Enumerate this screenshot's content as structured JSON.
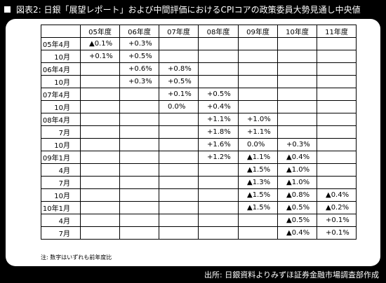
{
  "title": "図表2: 日銀「展望レポート」および中間評価におけるCPIコアの政策委員大勢見通し中央値",
  "columns": [
    "05年度",
    "06年度",
    "07年度",
    "08年度",
    "09年度",
    "10年度",
    "11年度"
  ],
  "rows": [
    {
      "label": "05年4月",
      "values": [
        "▲0.1%",
        "+0.3%",
        "",
        "",
        "",
        "",
        ""
      ]
    },
    {
      "label": "10月",
      "values": [
        "+0.1%",
        "+0.5%",
        "",
        "",
        "",
        "",
        ""
      ]
    },
    {
      "label": "06年4月",
      "values": [
        "",
        "+0.6%",
        "+0.8%",
        "",
        "",
        "",
        ""
      ]
    },
    {
      "label": "10月",
      "values": [
        "",
        "+0.3%",
        "+0.5%",
        "",
        "",
        "",
        ""
      ]
    },
    {
      "label": "07年4月",
      "values": [
        "",
        "",
        "+0.1%",
        "+0.5%",
        "",
        "",
        ""
      ]
    },
    {
      "label": "10月",
      "values": [
        "",
        "",
        "0.0%",
        "+0.4%",
        "",
        "",
        ""
      ]
    },
    {
      "label": "08年4月",
      "values": [
        "",
        "",
        "",
        "+1.1%",
        "+1.0%",
        "",
        ""
      ]
    },
    {
      "label": "7月",
      "values": [
        "",
        "",
        "",
        "+1.8%",
        "+1.1%",
        "",
        ""
      ]
    },
    {
      "label": "10月",
      "values": [
        "",
        "",
        "",
        "+1.6%",
        "0.0%",
        "+0.3%",
        ""
      ]
    },
    {
      "label": "09年1月",
      "values": [
        "",
        "",
        "",
        "+1.2%",
        "▲1.1%",
        "▲0.4%",
        ""
      ]
    },
    {
      "label": "4月",
      "values": [
        "",
        "",
        "",
        "",
        "▲1.5%",
        "▲1.0%",
        ""
      ]
    },
    {
      "label": "7月",
      "values": [
        "",
        "",
        "",
        "",
        "▲1.3%",
        "▲1.0%",
        ""
      ]
    },
    {
      "label": "10月",
      "values": [
        "",
        "",
        "",
        "",
        "▲1.5%",
        "▲0.8%",
        "▲0.4%"
      ]
    },
    {
      "label": "10年1月",
      "values": [
        "",
        "",
        "",
        "",
        "▲1.5%",
        "▲0.5%",
        "▲0.2%"
      ]
    },
    {
      "label": "4月",
      "values": [
        "",
        "",
        "",
        "",
        "",
        "▲0.5%",
        "+0.1%"
      ]
    },
    {
      "label": "7月",
      "values": [
        "",
        "",
        "",
        "",
        "",
        "▲0.4%",
        "+0.1%"
      ]
    }
  ],
  "note": "注: 数字はいずれも前年度比",
  "source": "出所: 日銀資料よりみずほ証券金融市場調査部作成"
}
